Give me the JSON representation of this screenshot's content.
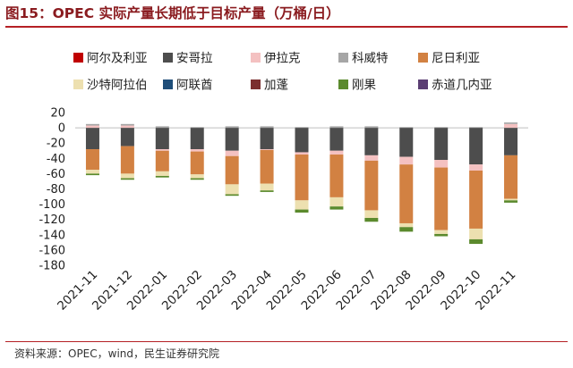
{
  "title": "图15：OPEC 实际产量长期低于目标产量（万桶/日）",
  "source": "资料来源：OPEC，wind，民生证券研究院",
  "chart_data": {
    "type": "bar",
    "stacked": true,
    "categories": [
      "2021-11",
      "2021-12",
      "2022-01",
      "2022-02",
      "2022-03",
      "2022-04",
      "2022-05",
      "2022-06",
      "2022-07",
      "2022-08",
      "2022-09",
      "2022-10",
      "2022-11"
    ],
    "yticks": [
      20,
      0,
      -20,
      -40,
      -60,
      -80,
      -100,
      -120,
      -140,
      -160,
      -180
    ],
    "ylim": [
      -180,
      20
    ],
    "legend_position": "top",
    "series": [
      {
        "name": "阿尔及利亚",
        "color": "#c00000",
        "values": [
          0,
          0,
          0,
          0,
          0,
          0,
          0,
          0,
          0,
          0,
          0,
          0,
          0
        ]
      },
      {
        "name": "安哥拉",
        "color": "#4d4d4d",
        "values": [
          -28,
          -24,
          -28,
          -28,
          -30,
          -28,
          -32,
          -30,
          -36,
          -38,
          -42,
          -48,
          -36
        ]
      },
      {
        "name": "伊拉克",
        "color": "#f4c1c1",
        "values": [
          3,
          3,
          -2,
          -3,
          -7,
          -1,
          -3,
          -5,
          -7,
          -10,
          -10,
          -8,
          5
        ]
      },
      {
        "name": "科威特",
        "color": "#a6a6a6",
        "values": [
          2,
          2,
          2,
          1,
          2,
          2,
          1,
          2,
          2,
          1,
          1,
          1,
          2
        ]
      },
      {
        "name": "尼日利亚",
        "color": "#d28142",
        "values": [
          -27,
          -36,
          -27,
          -30,
          -37,
          -44,
          -60,
          -56,
          -65,
          -77,
          -82,
          -76,
          -57
        ]
      },
      {
        "name": "沙特阿拉伯",
        "color": "#ede0b0",
        "values": [
          -5,
          -6,
          -6,
          -5,
          -13,
          -9,
          -12,
          -12,
          -10,
          -5,
          -5,
          -14,
          -2
        ]
      },
      {
        "name": "阿联酋",
        "color": "#1f4e79",
        "values": [
          0,
          0,
          0,
          0,
          0,
          0,
          0,
          0,
          0,
          0,
          0,
          0,
          0
        ]
      },
      {
        "name": "加蓬",
        "color": "#7b2e2e",
        "values": [
          0,
          0,
          0,
          0,
          0,
          0,
          0,
          0,
          0,
          0,
          0,
          0,
          0
        ]
      },
      {
        "name": "刚果",
        "color": "#5b8a2d",
        "values": [
          -2,
          -2,
          -2,
          -2,
          -2,
          -2,
          -4,
          -4,
          -5,
          -6,
          -3,
          -6,
          -3
        ]
      },
      {
        "name": "赤道几内亚",
        "color": "#5b3e73",
        "values": [
          0,
          0,
          0,
          0,
          0,
          0,
          0,
          0,
          0,
          0,
          0,
          0,
          0
        ]
      }
    ]
  }
}
